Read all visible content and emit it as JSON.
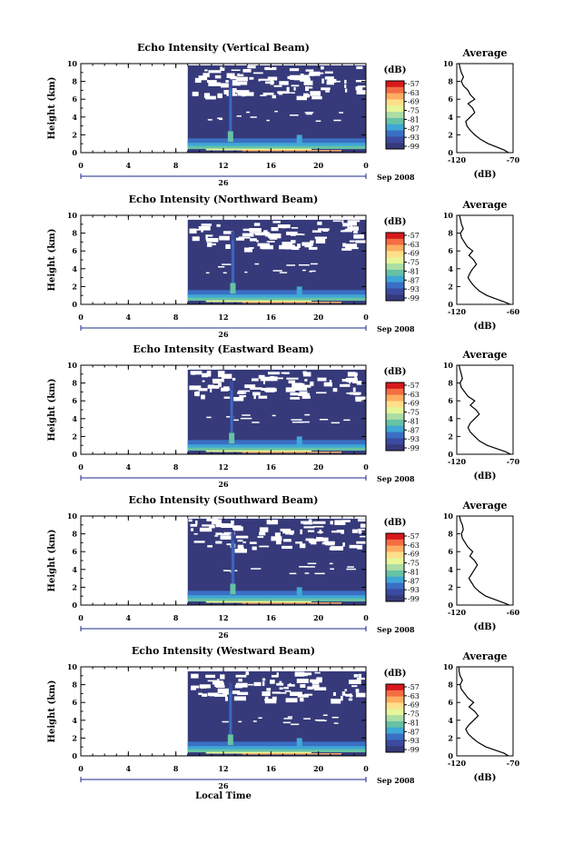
{
  "figure": {
    "xlabel": "Local Time",
    "date_day": "26",
    "date_month": "Sep 2008",
    "colorbar_unit": "(dB)",
    "colorbar_ticks": [
      "-57",
      "-63",
      "-69",
      "-75",
      "-81",
      "-87",
      "-93",
      "-99"
    ],
    "colorbar_colors": [
      "#d7191c",
      "#f46d43",
      "#fdae61",
      "#fee08b",
      "#e6f598",
      "#abdda4",
      "#66c2a5",
      "#3fa7d6",
      "#3a6fc4",
      "#3c4ba0",
      "#363a7a"
    ],
    "background_color": "#363a7a"
  },
  "chart_data": [
    {
      "type": "heatmap",
      "title": "Echo Intensity (Vertical Beam)",
      "ylabel": "Height (km)",
      "x_ticks": [
        "0",
        "4",
        "8",
        "12",
        "16",
        "20",
        "0"
      ],
      "xlim": [
        0,
        24
      ],
      "ylim": [
        0,
        10
      ],
      "y_ticks": [
        "0",
        "2",
        "4",
        "6",
        "8",
        "10"
      ],
      "data_start_hour": 9,
      "top_height_km": 9.8,
      "feature_hour": 12.6,
      "profile": {
        "title": "Average",
        "xlabel": "(dB)",
        "xlim": [
          -120,
          -70
        ],
        "x_ticks": [
          "-120",
          "-70"
        ],
        "y_ticks": [
          "0",
          "2",
          "4",
          "6",
          "8",
          "10"
        ],
        "height": [
          0,
          0.3,
          0.6,
          1,
          1.5,
          2,
          2.5,
          3,
          3.5,
          4,
          4.5,
          5,
          5.5,
          6,
          6.5,
          7,
          7.5,
          8,
          8.5,
          9,
          9.5,
          10
        ],
        "db": [
          -74,
          -78,
          -84,
          -92,
          -99,
          -104,
          -108,
          -111,
          -112,
          -108,
          -104,
          -106,
          -110,
          -104,
          -108,
          -110,
          -114,
          -116,
          -114,
          -116,
          -117,
          -118
        ]
      }
    },
    {
      "type": "heatmap",
      "title": "Echo Intensity (Northward Beam)",
      "ylabel": "Height (km)",
      "x_ticks": [
        "0",
        "4",
        "8",
        "12",
        "16",
        "20",
        "0"
      ],
      "xlim": [
        0,
        24
      ],
      "ylim": [
        0,
        10
      ],
      "y_ticks": [
        "0",
        "2",
        "4",
        "6",
        "8",
        "10"
      ],
      "data_start_hour": 9,
      "top_height_km": 9.5,
      "feature_hour": 12.8,
      "profile": {
        "title": "Average",
        "xlabel": "(dB)",
        "xlim": [
          -120,
          -60
        ],
        "x_ticks": [
          "-120",
          "-60"
        ],
        "y_ticks": [
          "0",
          "2",
          "4",
          "6",
          "8",
          "10"
        ],
        "height": [
          0,
          0.3,
          0.6,
          1,
          1.5,
          2,
          2.5,
          3,
          3.5,
          4,
          4.5,
          5,
          5.5,
          6,
          6.5,
          7,
          7.5,
          8,
          8.5,
          9,
          9.5,
          10
        ],
        "db": [
          -63,
          -70,
          -78,
          -88,
          -96,
          -101,
          -105,
          -108,
          -106,
          -103,
          -99,
          -102,
          -107,
          -103,
          -109,
          -112,
          -115,
          -116,
          -113,
          -115,
          -116,
          -117
        ]
      }
    },
    {
      "type": "heatmap",
      "title": "Echo Intensity (Eastward Beam)",
      "ylabel": "Height (km)",
      "x_ticks": [
        "0",
        "4",
        "8",
        "12",
        "16",
        "20",
        "0"
      ],
      "xlim": [
        0,
        24
      ],
      "ylim": [
        0,
        10
      ],
      "y_ticks": [
        "0",
        "2",
        "4",
        "6",
        "8",
        "10"
      ],
      "data_start_hour": 9,
      "top_height_km": 9.5,
      "feature_hour": 12.7,
      "profile": {
        "title": "Average",
        "xlabel": "(dB)",
        "xlim": [
          -120,
          -70
        ],
        "x_ticks": [
          "-120",
          "-70"
        ],
        "y_ticks": [
          "0",
          "2",
          "4",
          "6",
          "8",
          "10"
        ],
        "height": [
          0,
          0.3,
          0.6,
          1,
          1.5,
          2,
          2.5,
          3,
          3.5,
          4,
          4.5,
          5,
          5.5,
          6,
          6.5,
          7,
          7.5,
          8,
          8.5,
          9,
          9.5,
          10
        ],
        "db": [
          -72,
          -77,
          -84,
          -93,
          -100,
          -104,
          -108,
          -110,
          -108,
          -104,
          -100,
          -103,
          -108,
          -104,
          -110,
          -113,
          -116,
          -117,
          -115,
          -116,
          -117,
          -118
        ]
      }
    },
    {
      "type": "heatmap",
      "title": "Echo Intensity (Southward Beam)",
      "ylabel": "Height (km)",
      "x_ticks": [
        "0",
        "4",
        "8",
        "12",
        "16",
        "20",
        "0"
      ],
      "xlim": [
        0,
        24
      ],
      "ylim": [
        0,
        10
      ],
      "y_ticks": [
        "0",
        "2",
        "4",
        "6",
        "8",
        "10"
      ],
      "data_start_hour": 9,
      "top_height_km": 9.7,
      "feature_hour": 12.8,
      "profile": {
        "title": "Average",
        "xlabel": "(dB)",
        "xlim": [
          -120,
          -60
        ],
        "x_ticks": [
          "-120",
          "-60"
        ],
        "y_ticks": [
          "0",
          "2",
          "4",
          "6",
          "8",
          "10"
        ],
        "height": [
          0,
          0.3,
          0.6,
          1,
          1.5,
          2,
          2.5,
          3,
          3.5,
          4,
          4.5,
          5,
          5.5,
          6,
          6.5,
          7,
          7.5,
          8,
          8.5,
          9,
          9.5,
          10
        ],
        "db": [
          -64,
          -71,
          -79,
          -89,
          -96,
          -101,
          -104,
          -107,
          -104,
          -101,
          -98,
          -101,
          -106,
          -103,
          -108,
          -111,
          -114,
          -115,
          -113,
          -114,
          -116,
          -117
        ]
      }
    },
    {
      "type": "heatmap",
      "title": "Echo Intensity (Westward Beam)",
      "ylabel": "Height (km)",
      "x_ticks": [
        "0",
        "4",
        "8",
        "12",
        "16",
        "20",
        "0"
      ],
      "xlim": [
        0,
        24
      ],
      "ylim": [
        0,
        10
      ],
      "y_ticks": [
        "0",
        "2",
        "4",
        "6",
        "8",
        "10"
      ],
      "data_start_hour": 9,
      "top_height_km": 9.5,
      "feature_hour": 12.6,
      "profile": {
        "title": "Average",
        "xlabel": "(dB)",
        "xlim": [
          -120,
          -70
        ],
        "x_ticks": [
          "-120",
          "-70"
        ],
        "y_ticks": [
          "0",
          "2",
          "4",
          "6",
          "8",
          "10"
        ],
        "height": [
          0,
          0.3,
          0.6,
          1,
          1.5,
          2,
          2.5,
          3,
          3.5,
          4,
          4.5,
          5,
          5.5,
          6,
          6.5,
          7,
          7.5,
          8,
          8.5,
          9,
          9.5,
          10
        ],
        "db": [
          -74,
          -78,
          -85,
          -94,
          -101,
          -106,
          -110,
          -112,
          -109,
          -105,
          -101,
          -104,
          -109,
          -105,
          -110,
          -113,
          -116,
          -117,
          -115,
          -117,
          -118,
          -118
        ]
      }
    }
  ]
}
